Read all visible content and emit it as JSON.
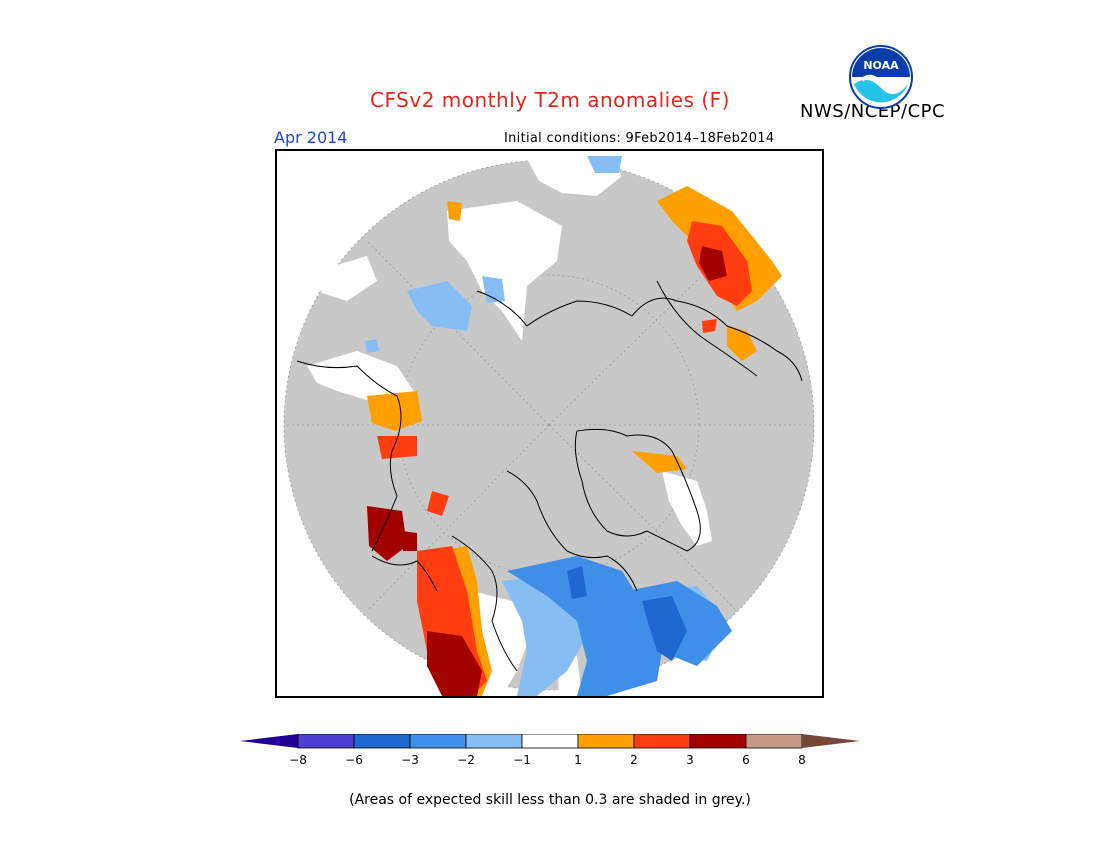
{
  "header": {
    "title": "CFSv2 monthly T2m anomalies (F)",
    "org": "NWS/NCEP/CPC",
    "period": "Apr 2014",
    "initial_conditions": "Initial conditions: 9Feb2014–18Feb2014"
  },
  "logo": {
    "icon": "noaa-logo-icon",
    "text": "NOAA"
  },
  "colorbar": {
    "ticks": [
      "−8",
      "−6",
      "−3",
      "−2",
      "−1",
      "1",
      "2",
      "3",
      "6",
      "8"
    ],
    "colors": {
      "lt_-8": "#200096",
      "-8_-6": "#4d3ecf",
      "-6_-3": "#1f68d0",
      "-3_-2": "#3f8ee8",
      "-2_-1": "#86bdf2",
      "-1_1": "#ffffff",
      "1_2": "#ff9f00",
      "2_3": "#ff3d10",
      "3_6": "#a30000",
      "6_8": "#c49a84",
      "gt_8": "#754738"
    }
  },
  "map_colors": {
    "no_skill_grey": "#c8c8c8",
    "background": "#ffffff"
  },
  "footnote": "(Areas of expected skill less than 0.3 are shaded in grey.)"
}
